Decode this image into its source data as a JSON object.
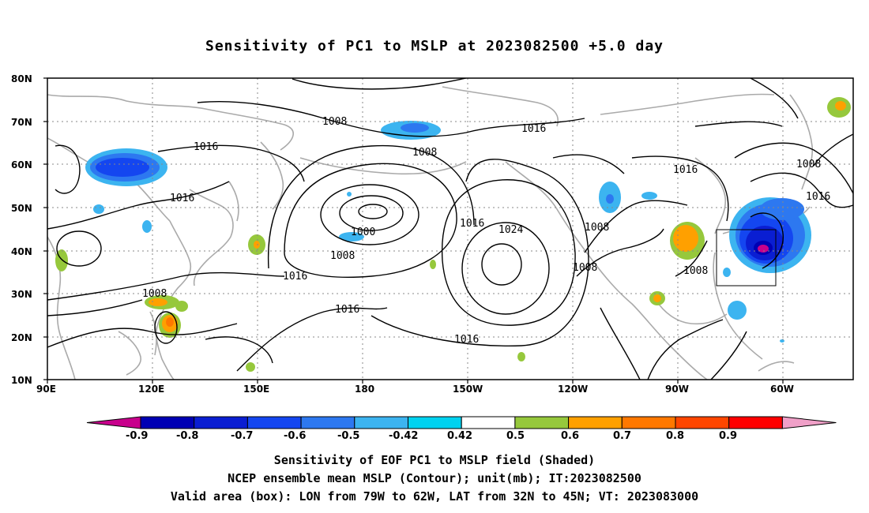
{
  "title": "Sensitivity of PC1 to MSLP at 2023082500 +5.0 day",
  "map": {
    "lat_labels": [
      "80N",
      "70N",
      "60N",
      "50N",
      "40N",
      "30N",
      "20N",
      "10N"
    ],
    "lon_labels": [
      "90E",
      "120E",
      "150E",
      "180",
      "150W",
      "120W",
      "90W",
      "60W"
    ],
    "contour_labels": [
      {
        "text": "1008"
      },
      {
        "text": "1016"
      },
      {
        "text": "1008"
      },
      {
        "text": "1016"
      },
      {
        "text": "1016"
      },
      {
        "text": "1000"
      },
      {
        "text": "1008"
      },
      {
        "text": "1016"
      },
      {
        "text": "1016"
      },
      {
        "text": "1024"
      },
      {
        "text": "1008"
      },
      {
        "text": "1008"
      },
      {
        "text": "1016"
      },
      {
        "text": "1008"
      },
      {
        "text": "1016"
      },
      {
        "text": "1008"
      },
      {
        "text": "1016"
      },
      {
        "text": "1008"
      },
      {
        "text": "1016"
      }
    ]
  },
  "colorbar": {
    "labels": [
      "-0.9",
      "-0.8",
      "-0.7",
      "-0.6",
      "-0.5",
      "-0.42",
      "0.42",
      "0.5",
      "0.6",
      "0.7",
      "0.8",
      "0.9"
    ],
    "colors": [
      "#c8008c",
      "#0000b4",
      "#0a1ed2",
      "#1446f0",
      "#2d78f0",
      "#3cb4f0",
      "#00d2f0",
      "#ffffff",
      "#96c83c",
      "#ffa000",
      "#ff7800",
      "#ff4600",
      "#ff0000",
      "#f0a0c8"
    ]
  },
  "captions": {
    "line1": "Sensitivity of EOF PC1 to MSLP field (Shaded)",
    "line2": "NCEP ensemble mean MSLP (Contour); unit(mb); IT:2023082500",
    "line3": "Valid area (box): LON from 79W to 62W, LAT from 32N to 45N; VT: 2023083000"
  }
}
